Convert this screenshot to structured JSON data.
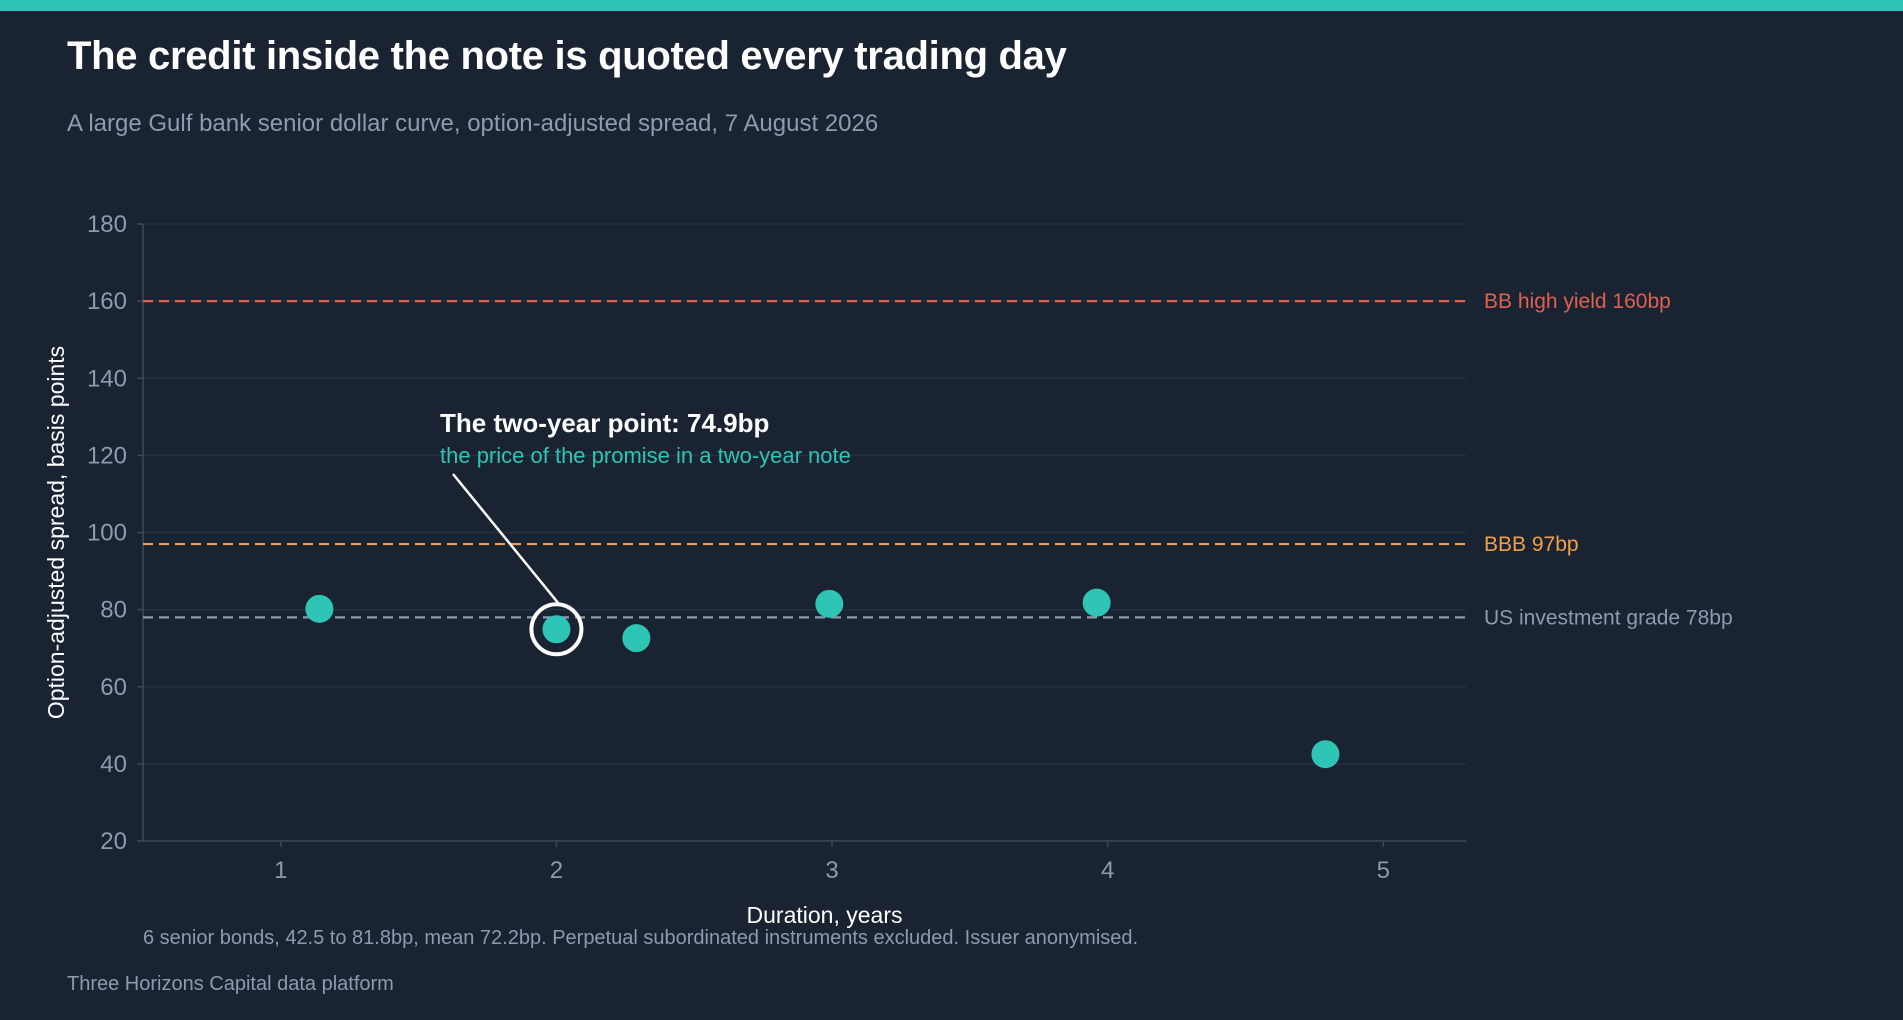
{
  "header": {
    "title": "The credit inside the note is quoted every trading day",
    "subtitle": "A large Gulf bank senior dollar curve, option-adjusted spread, 7 August 2026"
  },
  "footer": {
    "note": "6 senior bonds, 42.5 to 81.8bp, mean 72.2bp. Perpetual subordinated instruments excluded. Issuer anonymised.",
    "source": "Three Horizons Capital data platform"
  },
  "colors": {
    "background": "#1a2332",
    "accent": "#2ec4b6",
    "grid": "#243142",
    "axis": "#3a4a5c",
    "muted": "#8b9bb0",
    "bb": "#e0604f",
    "bbb": "#f0a04a",
    "ig": "#8b9bb0"
  },
  "chart_data": {
    "type": "scatter",
    "xlabel": "Duration, years",
    "ylabel": "Option-adjusted spread, basis points",
    "xlim": [
      0.5,
      5.3
    ],
    "ylim": [
      20,
      180
    ],
    "xticks": [
      1,
      2,
      3,
      4,
      5
    ],
    "yticks": [
      20,
      40,
      60,
      80,
      100,
      120,
      140,
      160,
      180
    ],
    "grid": "horizontal",
    "points": [
      {
        "x": 1.14,
        "y": 80.2
      },
      {
        "x": 2.0,
        "y": 74.9
      },
      {
        "x": 2.29,
        "y": 72.6
      },
      {
        "x": 2.99,
        "y": 81.5
      },
      {
        "x": 3.96,
        "y": 81.8
      },
      {
        "x": 4.79,
        "y": 42.5
      }
    ],
    "reference_lines": [
      {
        "label": "BB high yield  160bp",
        "value": 160,
        "color": "#e0604f"
      },
      {
        "label": "BBB  97bp",
        "value": 97,
        "color": "#f0a04a"
      },
      {
        "label": "US investment grade  78bp",
        "value": 78,
        "color": "#8b9bb0"
      }
    ],
    "annotation": {
      "title": "The two-year point: 74.9bp",
      "subtitle": "the price of the promise in a two-year note",
      "point_index": 1
    }
  }
}
